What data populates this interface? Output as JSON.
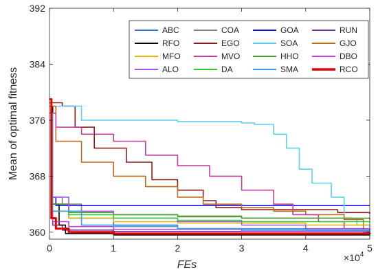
{
  "chart_data": {
    "type": "line",
    "title": "",
    "xlabel": "FEs",
    "ylabel": "Mean of optimal fitness",
    "x_exponent_label": "×10",
    "x_exponent_power": "4",
    "xlim": [
      0,
      5
    ],
    "ylim": [
      359,
      392
    ],
    "xticks": [
      "0",
      "1",
      "2",
      "3",
      "4",
      "5"
    ],
    "yticks": [
      "360",
      "368",
      "376",
      "384",
      "392"
    ],
    "legend_position": "top-right",
    "grid": false,
    "series": [
      {
        "name": "ABC",
        "color": "#2f6fd6",
        "points": [
          [
            0,
            376
          ],
          [
            0.05,
            364
          ],
          [
            0.3,
            362
          ],
          [
            1,
            361
          ],
          [
            2,
            360.5
          ],
          [
            3,
            360.3
          ],
          [
            5,
            360.2
          ]
        ]
      },
      {
        "name": "COA",
        "color": "#808080",
        "points": [
          [
            0,
            377
          ],
          [
            0.05,
            365
          ],
          [
            0.2,
            364
          ],
          [
            0.5,
            363
          ],
          [
            1,
            362.5
          ],
          [
            2,
            362.2
          ],
          [
            3,
            362
          ],
          [
            5,
            362
          ]
        ]
      },
      {
        "name": "GOA",
        "color": "#1010e0",
        "points": [
          [
            0,
            377
          ],
          [
            0.05,
            365
          ],
          [
            0.1,
            363.8
          ],
          [
            1,
            363.8
          ],
          [
            5,
            363.8
          ]
        ]
      },
      {
        "name": "RUN",
        "color": "#7030a0",
        "points": [
          [
            0,
            377
          ],
          [
            0.05,
            361
          ],
          [
            0.2,
            360.3
          ],
          [
            1,
            360.1
          ],
          [
            5,
            360
          ]
        ]
      },
      {
        "name": "RFO",
        "color": "#000000",
        "points": [
          [
            0,
            378
          ],
          [
            0.05,
            364
          ],
          [
            0.15,
            361
          ],
          [
            0.25,
            359.8
          ],
          [
            1,
            359.6
          ],
          [
            5,
            359.5
          ]
        ]
      },
      {
        "name": "EGO",
        "color": "#8b1a1a",
        "points": [
          [
            0,
            378.5
          ],
          [
            0.2,
            378
          ],
          [
            0.4,
            375
          ],
          [
            0.7,
            372
          ],
          [
            1.2,
            370
          ],
          [
            1.6,
            367.5
          ],
          [
            2,
            366
          ],
          [
            2.4,
            364.5
          ],
          [
            2.6,
            363.5
          ],
          [
            3,
            363.2
          ],
          [
            4.5,
            362.8
          ],
          [
            5,
            362.6
          ]
        ]
      },
      {
        "name": "SOA",
        "color": "#5bcfee",
        "points": [
          [
            0,
            378
          ],
          [
            0.3,
            378
          ],
          [
            0.5,
            376
          ],
          [
            2,
            375.8
          ],
          [
            3,
            375.6
          ],
          [
            3.2,
            375.4
          ],
          [
            3.5,
            374
          ],
          [
            3.7,
            372
          ],
          [
            3.9,
            369
          ],
          [
            4.1,
            367
          ],
          [
            4.4,
            365
          ],
          [
            4.6,
            362
          ],
          [
            4.8,
            361
          ],
          [
            5,
            360.8
          ]
        ]
      },
      {
        "name": "GJO",
        "color": "#c06a1a",
        "points": [
          [
            0,
            378
          ],
          [
            0.1,
            373
          ],
          [
            0.5,
            370
          ],
          [
            1,
            368
          ],
          [
            1.5,
            366.5
          ],
          [
            2,
            365
          ],
          [
            2.4,
            364
          ],
          [
            3,
            363.5
          ],
          [
            3.5,
            363
          ],
          [
            4,
            362.5
          ],
          [
            4.6,
            361.8
          ],
          [
            4.9,
            360
          ],
          [
            5,
            359.8
          ]
        ]
      },
      {
        "name": "MFO",
        "color": "#e0b800",
        "points": [
          [
            0,
            377
          ],
          [
            0.05,
            363
          ],
          [
            0.3,
            362
          ],
          [
            1,
            361.5
          ],
          [
            2,
            361.3
          ],
          [
            4,
            361
          ],
          [
            5,
            361
          ]
        ]
      },
      {
        "name": "MVO",
        "color": "#c43c9c",
        "points": [
          [
            0,
            377
          ],
          [
            0.1,
            375
          ],
          [
            0.5,
            374
          ],
          [
            1,
            373
          ],
          [
            1.5,
            371
          ],
          [
            2,
            369.5
          ],
          [
            2.5,
            368
          ],
          [
            3,
            366
          ],
          [
            3.5,
            364
          ],
          [
            3.8,
            362.5
          ],
          [
            4.2,
            361.5
          ],
          [
            4.6,
            360.5
          ],
          [
            5,
            360.2
          ]
        ]
      },
      {
        "name": "HHO",
        "color": "#4a9e2a",
        "points": [
          [
            0,
            377
          ],
          [
            0.05,
            364
          ],
          [
            0.3,
            362.8
          ],
          [
            1,
            362.5
          ],
          [
            2,
            362.3
          ],
          [
            3,
            362
          ],
          [
            5,
            361.8
          ]
        ]
      },
      {
        "name": "DBO",
        "color": "#c83cd8",
        "points": [
          [
            0,
            377
          ],
          [
            0.05,
            361.5
          ],
          [
            0.3,
            360.8
          ],
          [
            1,
            360.4
          ],
          [
            3,
            360.1
          ],
          [
            5,
            360
          ]
        ]
      },
      {
        "name": "ALO",
        "color": "#a855f7",
        "points": [
          [
            0,
            377
          ],
          [
            0.05,
            365
          ],
          [
            0.3,
            363
          ],
          [
            1,
            362
          ],
          [
            2,
            361.5
          ],
          [
            3,
            361
          ],
          [
            4,
            360.5
          ],
          [
            5,
            360.3
          ]
        ]
      },
      {
        "name": "DA",
        "color": "#2ecc2e",
        "points": [
          [
            0,
            377
          ],
          [
            0.05,
            363
          ],
          [
            0.3,
            362.5
          ],
          [
            1,
            362
          ],
          [
            2,
            361.7
          ],
          [
            3,
            361.5
          ],
          [
            5,
            361.4
          ]
        ]
      },
      {
        "name": "SMA",
        "color": "#3ba0e8",
        "points": [
          [
            0,
            377
          ],
          [
            0.05,
            363
          ],
          [
            0.5,
            361
          ],
          [
            1,
            360.8
          ],
          [
            2,
            360.5
          ],
          [
            4,
            360.2
          ],
          [
            5,
            360.1
          ]
        ]
      },
      {
        "name": "RCO",
        "color": "#e00000",
        "points": [
          [
            0,
            379
          ],
          [
            0.03,
            362
          ],
          [
            0.1,
            360.5
          ],
          [
            0.3,
            360
          ],
          [
            1,
            359.8
          ],
          [
            5,
            359.7
          ]
        ]
      }
    ]
  }
}
